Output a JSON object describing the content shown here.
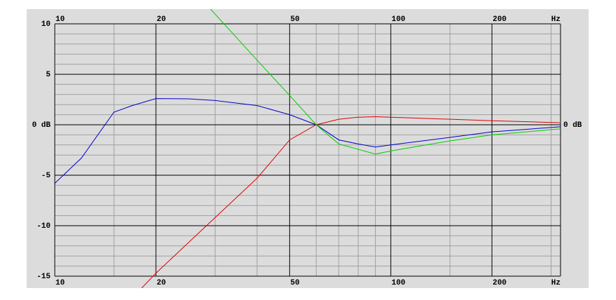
{
  "chart_data": {
    "type": "line",
    "x_scale": "log",
    "x_unit": "Hz",
    "xlim": [
      10,
      320
    ],
    "xticks": [
      10,
      20,
      50,
      100,
      200
    ],
    "minor_xticks": [
      15,
      30,
      40,
      60,
      70,
      80,
      90,
      150,
      300
    ],
    "ylim": [
      -15,
      10
    ],
    "yticks": [
      -15,
      -10,
      -5,
      {
        "value": 0,
        "label": "0 dB"
      },
      5,
      10
    ],
    "minor_yticks": [
      -14,
      -13,
      -12,
      -11,
      -9,
      -8,
      -7,
      -6,
      -4,
      -3,
      -2,
      -1,
      1,
      2,
      3,
      4,
      6,
      7,
      8,
      9
    ],
    "grid": true,
    "series": [
      {
        "color": "#0000cc",
        "x": [
          10,
          12,
          15,
          17,
          20,
          25,
          30,
          40,
          50,
          60,
          70,
          80,
          90,
          100,
          150,
          200,
          320
        ],
        "values": [
          -5.8,
          -3.3,
          1.25,
          1.9,
          2.6,
          2.57,
          2.4,
          1.9,
          1.0,
          0,
          -1.5,
          -1.9,
          -2.2,
          -2.0,
          -1.25,
          -0.7,
          -0.2
        ]
      },
      {
        "color": "#dd0000",
        "x": [
          18,
          20,
          30,
          40,
          50,
          60,
          70,
          80,
          90,
          100,
          200,
          320
        ],
        "values": [
          -16.3,
          -14.7,
          -9.2,
          -5.3,
          -1.5,
          0,
          0.55,
          0.75,
          0.8,
          0.75,
          0.4,
          0.2
        ]
      },
      {
        "color": "#00cc00",
        "x": [
          29,
          40,
          50,
          60,
          70,
          90,
          100,
          150,
          200,
          320
        ],
        "values": [
          11.5,
          6.4,
          2.9,
          0,
          -1.9,
          -2.9,
          -2.6,
          -1.6,
          -1.0,
          -0.4
        ]
      }
    ]
  }
}
